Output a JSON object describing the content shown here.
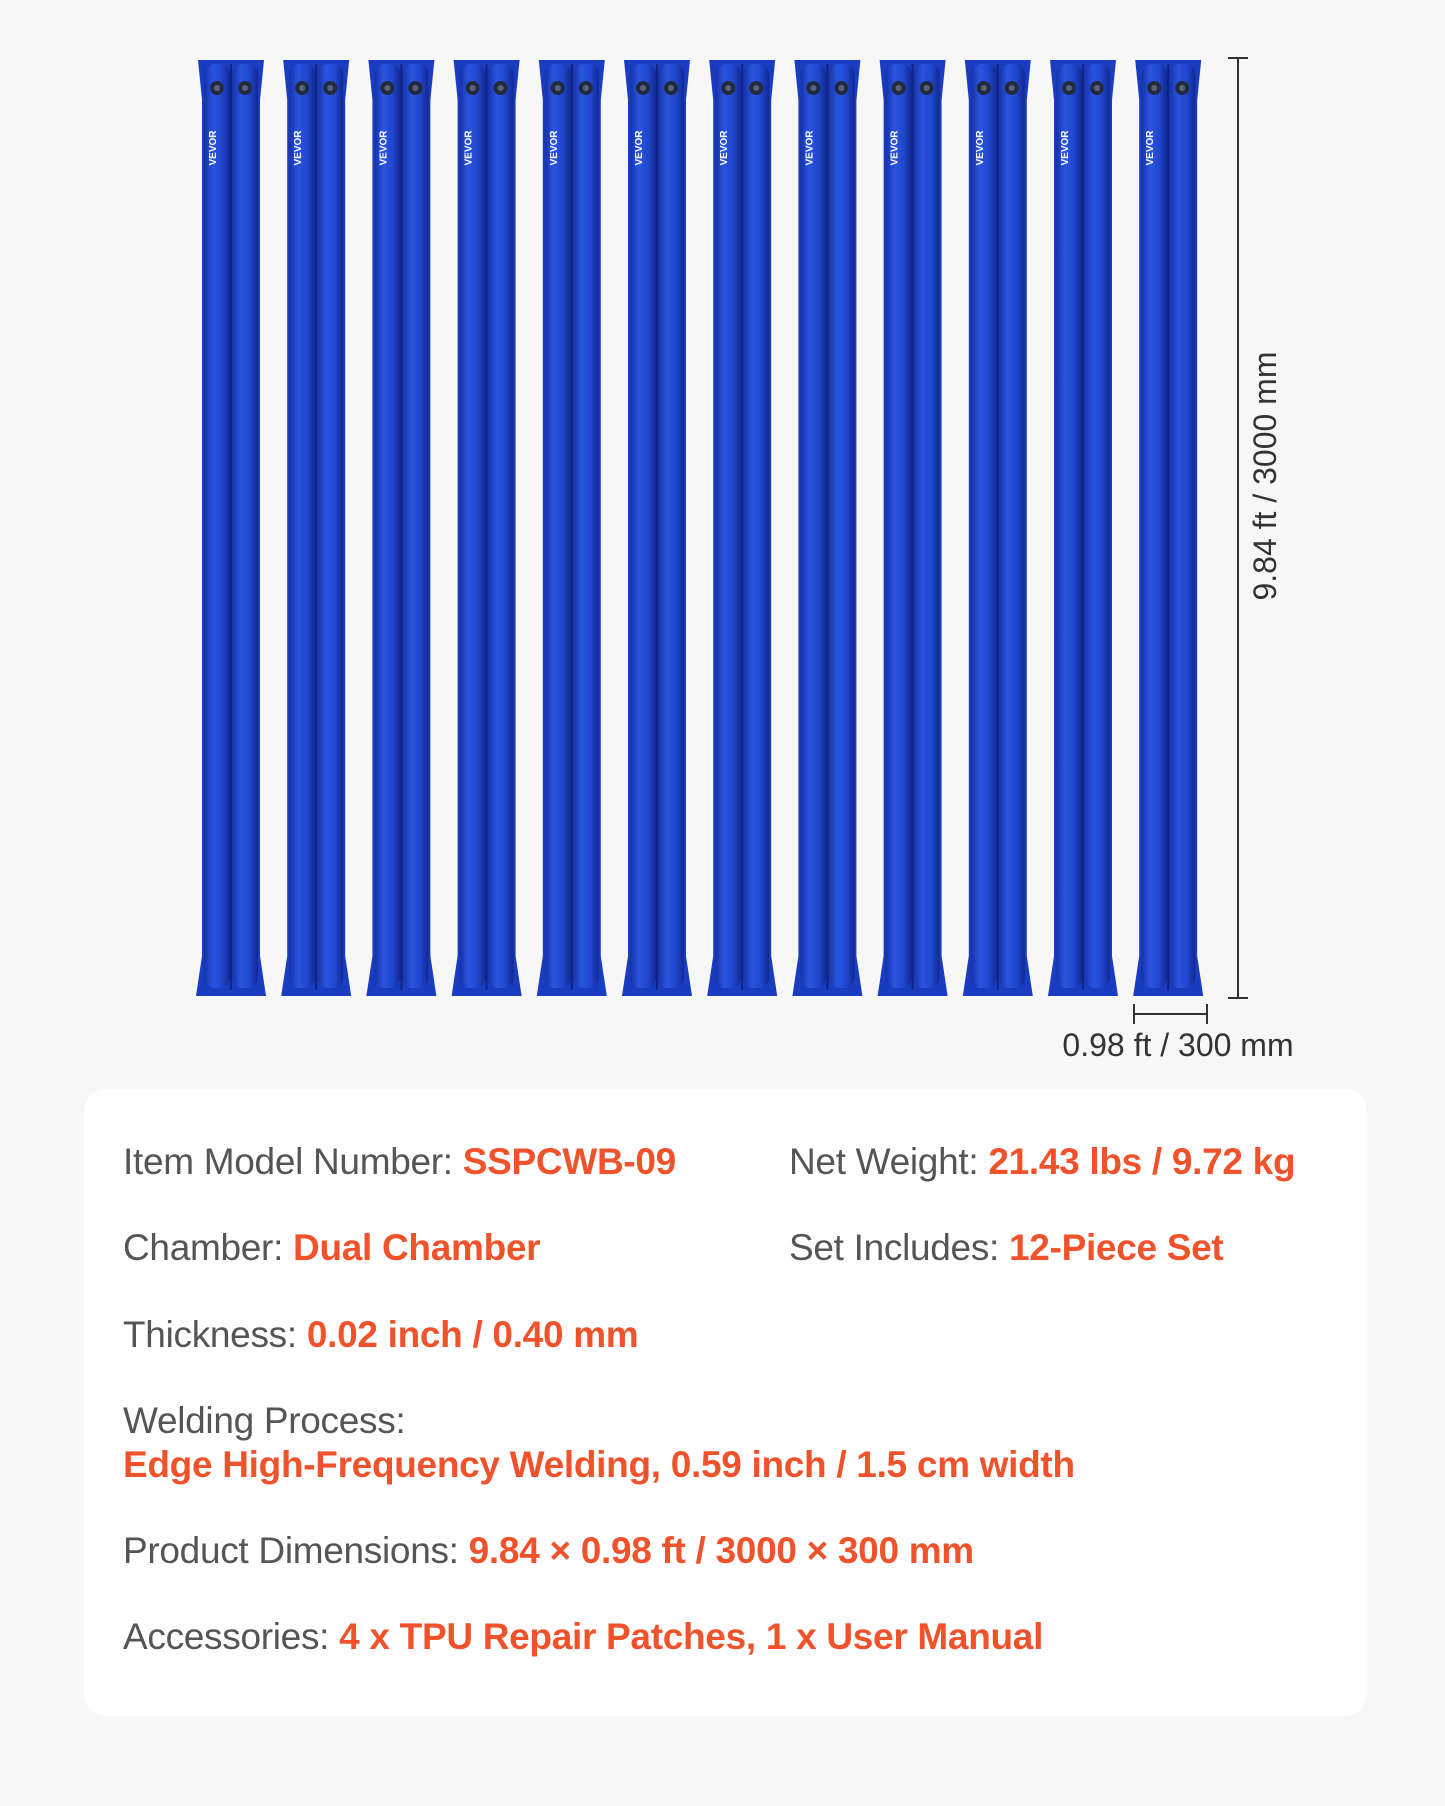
{
  "brand": "VEVOR",
  "dimensions": {
    "height": "9.84 ft / 3000 mm",
    "width": "0.98 ft / 300 mm"
  },
  "specs": [
    {
      "label": "Item Model Number:",
      "value": "SSPCWB-09"
    },
    {
      "label": "Net Weight:",
      "value": "21.43 lbs / 9.72 kg"
    },
    {
      "label": "Chamber:",
      "value": "Dual Chamber"
    },
    {
      "label": "Set Includes:",
      "value": "12-Piece Set"
    },
    {
      "label": "Thickness:",
      "value": "0.02 inch / 0.40 mm"
    },
    {
      "label": "Welding Process:",
      "value": "Edge High-Frequency Welding, 0.59 inch / 1.5 cm width"
    },
    {
      "label": "Product Dimensions:",
      "value": "9.84 × 0.98 ft / 3000 × 300 mm"
    },
    {
      "label": "Accessories:",
      "value": "4 x TPU Repair Patches, 1 x User Manual"
    }
  ]
}
